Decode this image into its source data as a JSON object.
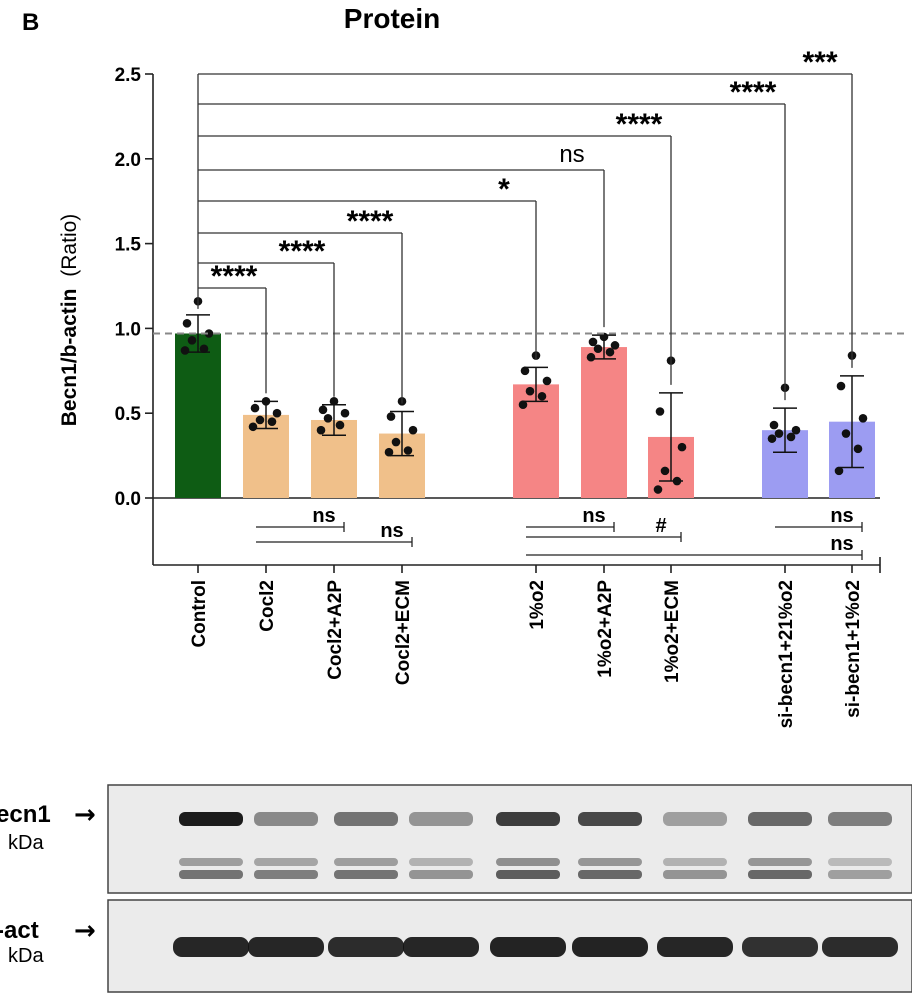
{
  "panel_label": "B",
  "chart_data": {
    "type": "bar",
    "title": "Protein",
    "ylabel": "Becn1/b-actin (Ratio)",
    "ylabel_bold_part": "Becn1/b-actin",
    "ylabel_unit_part": "(Ratio)",
    "ylim": [
      0,
      2.5
    ],
    "yticks": [
      "0.0",
      "0.5",
      "1.0",
      "1.5",
      "2.0",
      "2.5"
    ],
    "reference_line": 0.97,
    "categories": [
      "Control",
      "Cocl2",
      "Cocl2+A2P",
      "Cocl2+ECM",
      "1%o2",
      "1%o2+A2P",
      "1%o2+ECM",
      "si-becn1+21%o2",
      "si-becn1+1%o2"
    ],
    "values": [
      0.97,
      0.49,
      0.46,
      0.38,
      0.67,
      0.89,
      0.36,
      0.4,
      0.45
    ],
    "errors": [
      0.11,
      0.08,
      0.09,
      0.13,
      0.1,
      0.07,
      0.26,
      0.13,
      0.27
    ],
    "bar_colors": [
      "#0e5c14",
      "#f0c08a",
      "#f0c08a",
      "#f0c08a",
      "#f58585",
      "#f58585",
      "#f58585",
      "#9c9cf2",
      "#9c9cf2"
    ],
    "points": [
      [
        1.16,
        1.03,
        0.97,
        0.93,
        0.88,
        0.87
      ],
      [
        0.57,
        0.53,
        0.5,
        0.46,
        0.45,
        0.42
      ],
      [
        0.57,
        0.52,
        0.5,
        0.47,
        0.43,
        0.4
      ],
      [
        0.57,
        0.48,
        0.4,
        0.33,
        0.28,
        0.27
      ],
      [
        0.84,
        0.75,
        0.69,
        0.63,
        0.6,
        0.55
      ],
      [
        0.95,
        0.92,
        0.9,
        0.88,
        0.86,
        0.83
      ],
      [
        0.81,
        0.51,
        0.3,
        0.16,
        0.1,
        0.05
      ],
      [
        0.65,
        0.43,
        0.4,
        0.38,
        0.36,
        0.35
      ],
      [
        0.84,
        0.66,
        0.47,
        0.38,
        0.29,
        0.16
      ]
    ],
    "comparisons_top": [
      {
        "from": 0,
        "to": 1,
        "label": "****"
      },
      {
        "from": 0,
        "to": 2,
        "label": "****"
      },
      {
        "from": 0,
        "to": 3,
        "label": "****"
      },
      {
        "from": 0,
        "to": 4,
        "label": "*"
      },
      {
        "from": 0,
        "to": 5,
        "label": "ns"
      },
      {
        "from": 0,
        "to": 6,
        "label": "****"
      },
      {
        "from": 0,
        "to": 7,
        "label": "****"
      },
      {
        "from": 0,
        "to": 8,
        "label": "***"
      }
    ],
    "comparisons_bottom": [
      {
        "from": 1,
        "to": 2,
        "label": "ns"
      },
      {
        "from": 1,
        "to": 3,
        "label": "ns"
      },
      {
        "from": 4,
        "to": 5,
        "label": "ns"
      },
      {
        "from": 4,
        "to": 6,
        "label": "#"
      },
      {
        "from": 7,
        "to": 8,
        "label": "ns"
      },
      {
        "from": 4,
        "to": 8,
        "label": "ns"
      }
    ]
  },
  "blot": {
    "rows": [
      {
        "label": "ecn1",
        "kda": "kDa",
        "arrow": "→"
      },
      {
        "label": "-act",
        "kda": "kDa",
        "arrow": "→"
      }
    ],
    "becn1_upper_intensity": [
      0.95,
      0.45,
      0.55,
      0.4,
      0.8,
      0.75,
      0.35,
      0.6,
      0.5
    ],
    "becn1_lower_intensity": [
      0.55,
      0.5,
      0.55,
      0.4,
      0.65,
      0.6,
      0.4,
      0.6,
      0.35
    ],
    "actin_intensity": [
      0.9,
      0.9,
      0.88,
      0.9,
      0.92,
      0.92,
      0.9,
      0.85,
      0.88
    ]
  }
}
